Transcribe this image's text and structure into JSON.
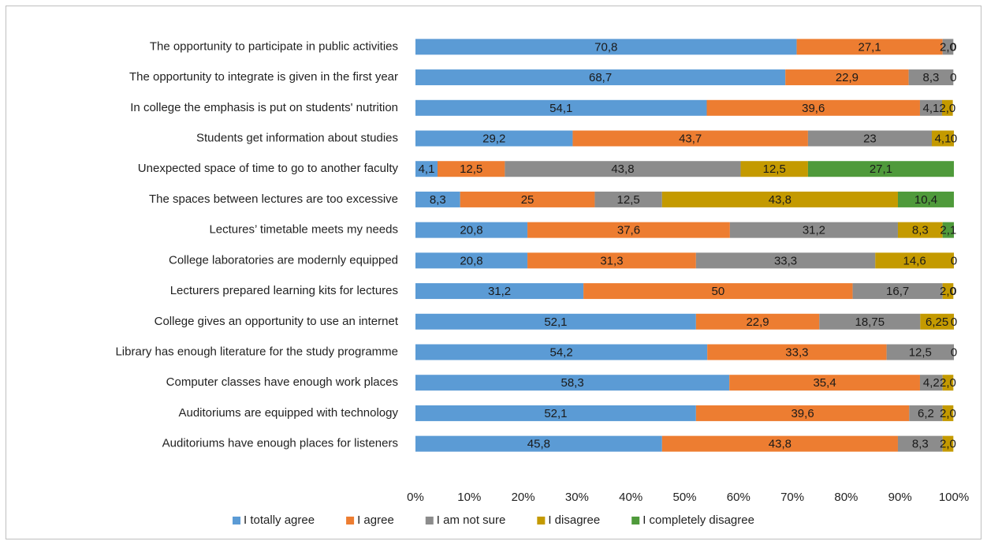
{
  "chart_data": {
    "type": "stacked-bar-horizontal",
    "categories": [
      "The opportunity to participate in public activities",
      "The opportunity to integrate is given in the first year",
      "In college the emphasis is put on students' nutrition",
      "Students get information about studies",
      "Unexpected space of time to go to another faculty",
      "The spaces between lectures are too excessive",
      "Lectures’ timetable meets my needs",
      "College laboratories are modernly equipped",
      "Lecturers prepared learning kits for lectures",
      "College gives an opportunity to use an internet",
      "Library has enough literature for the study programme",
      "Computer classes have enough work places",
      "Auditoriums are equipped with technology",
      "Auditoriums have enough places for listeners"
    ],
    "series": [
      {
        "name": "I totally agree",
        "color": "#5b9bd5",
        "values": [
          70.8,
          68.7,
          54.1,
          29.2,
          4.1,
          8.3,
          20.8,
          20.8,
          31.2,
          52.1,
          54.2,
          58.3,
          52.1,
          45.8
        ],
        "value_labels": [
          "70,8",
          "68,7",
          "54,1",
          "29,2",
          "4,1",
          "8,3",
          "20,8",
          "20,8",
          "31,2",
          "52,1",
          "54,2",
          "58,3",
          "52,1",
          "45,8"
        ]
      },
      {
        "name": "I agree",
        "color": "#ed7d31",
        "values": [
          27.1,
          22.9,
          39.6,
          43.7,
          12.5,
          25,
          37.6,
          31.3,
          50,
          22.9,
          33.3,
          35.4,
          39.6,
          43.8
        ],
        "value_labels": [
          "27,1",
          "22,9",
          "39,6",
          "43,7",
          "12,5",
          "25",
          "37,6",
          "31,3",
          "50",
          "22,9",
          "33,3",
          "35,4",
          "39,6",
          "43,8"
        ]
      },
      {
        "name": "I am not sure",
        "color": "#8c8c8c",
        "values": [
          2.0,
          8.3,
          4.1,
          23,
          43.8,
          12.5,
          31.2,
          33.3,
          16.7,
          18.75,
          12.5,
          4.2,
          6.2,
          8.3
        ],
        "value_labels": [
          "2,0",
          "8,3",
          "4,1",
          "23",
          "43,8",
          "12,5",
          "31,2",
          "33,3",
          "16,7",
          "18,75",
          "12,5",
          "4,2",
          "6,2",
          "8,3"
        ]
      },
      {
        "name": "I disagree",
        "color": "#c49a00",
        "values": [
          0,
          0,
          2.0,
          4.1,
          12.5,
          43.8,
          8.3,
          14.6,
          2.0,
          6.25,
          0,
          2.0,
          2.0,
          2.0
        ],
        "value_labels": [
          "0",
          "0",
          "2,0",
          "4,1",
          "12,5",
          "43,8",
          "8,3",
          "14,6",
          "2,0",
          "6,25",
          "0",
          "2,0",
          "2,0",
          "2,0"
        ]
      },
      {
        "name": "I completely disagree",
        "color": "#4f9a3b",
        "values": [
          0,
          0,
          0,
          0,
          27.1,
          10.4,
          2.1,
          0,
          0,
          0,
          0,
          0,
          0,
          0
        ],
        "value_labels": [
          null,
          null,
          null,
          "0",
          "27,1",
          "10,4",
          "2,1",
          "0",
          "0",
          "0",
          null,
          null,
          null,
          null
        ]
      }
    ],
    "xlim": [
      0,
      100
    ],
    "xticks": [
      {
        "value": 0,
        "label": "0%"
      },
      {
        "value": 10,
        "label": "10%"
      },
      {
        "value": 20,
        "label": "20%"
      },
      {
        "value": 30,
        "label": "30%"
      },
      {
        "value": 40,
        "label": "40%"
      },
      {
        "value": 50,
        "label": "50%"
      },
      {
        "value": 60,
        "label": "60%"
      },
      {
        "value": 70,
        "label": "70%"
      },
      {
        "value": 80,
        "label": "80%"
      },
      {
        "value": 90,
        "label": "90%"
      },
      {
        "value": 100,
        "label": "100%"
      }
    ],
    "legend": "bottom"
  }
}
